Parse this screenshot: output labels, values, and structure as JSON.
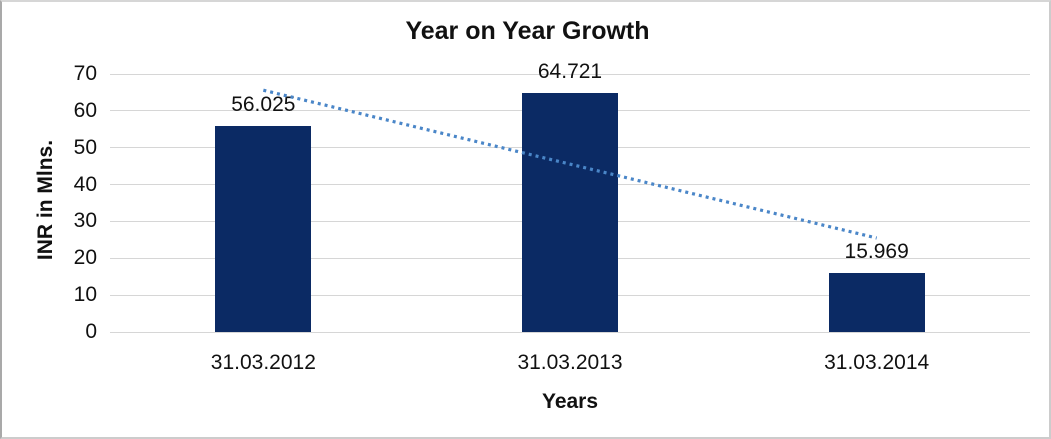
{
  "chart_data": {
    "type": "bar",
    "title": "Year on Year Growth",
    "categories": [
      "31.03.2012",
      "31.03.2013",
      "31.03.2014"
    ],
    "values": [
      56.025,
      64.721,
      15.969
    ],
    "data_labels": [
      "56.025",
      "64.721",
      "15.969"
    ],
    "xlabel": "Years",
    "ylabel": "INR in Mlns.",
    "ylim": [
      0,
      70
    ],
    "yticks": [
      0,
      10,
      20,
      30,
      40,
      50,
      60,
      70
    ],
    "grid": "horizontal",
    "legend": "none",
    "bar_color": "#0b2a64",
    "text_color": "#111111",
    "gridline_color": "#d6d6d6",
    "background_color": "#ffffff",
    "trendline": {
      "type": "linear",
      "style": "dotted",
      "color": "#4a86c8",
      "start_category": "31.03.2012",
      "end_category": "31.03.2014",
      "start_value": 65.6,
      "end_value": 25.5
    }
  }
}
